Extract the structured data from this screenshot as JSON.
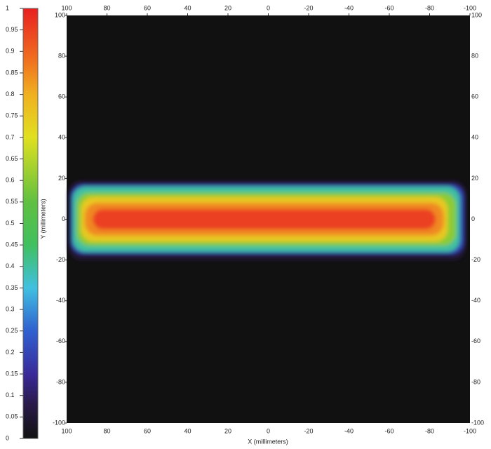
{
  "chart_data": {
    "type": "heatmap",
    "xlabel": "X (millimeters)",
    "ylabel": "Y (millimeters)",
    "xlim": [
      100,
      -100
    ],
    "xticks": [
      100,
      80,
      60,
      40,
      20,
      0,
      -20,
      -40,
      -60,
      -80,
      -100
    ],
    "ylim": [
      -100,
      100
    ],
    "yticks": [
      100,
      80,
      60,
      40,
      20,
      0,
      -20,
      -40,
      -60,
      -80,
      -100
    ],
    "colorbar": {
      "lim": [
        0,
        1
      ],
      "ticks": [
        0,
        0.05,
        0.1,
        0.15,
        0.2,
        0.25,
        0.3,
        0.35,
        0.4,
        0.45,
        0.5,
        0.55,
        0.6,
        0.65,
        0.7,
        0.75,
        0.8,
        0.85,
        0.9,
        0.95,
        1
      ]
    },
    "colormap": [
      [
        0,
        "#111111"
      ],
      [
        0.08,
        "#2a1a4a"
      ],
      [
        0.15,
        "#3a2a9a"
      ],
      [
        0.25,
        "#3060d0"
      ],
      [
        0.35,
        "#40c0e0"
      ],
      [
        0.45,
        "#40c060"
      ],
      [
        0.55,
        "#60c040"
      ],
      [
        0.7,
        "#e0e020"
      ],
      [
        0.8,
        "#f0b020"
      ],
      [
        0.88,
        "#f07020"
      ],
      [
        1,
        "#e82020"
      ]
    ],
    "contours": [
      {
        "level": 0.05,
        "x": [
          99,
          -98
        ],
        "y": [
          -20,
          19
        ]
      },
      {
        "level": 0.2,
        "x": [
          98,
          -97
        ],
        "y": [
          -17,
          17
        ]
      },
      {
        "level": 0.4,
        "x": [
          97,
          -95
        ],
        "y": [
          -16,
          16
        ]
      },
      {
        "level": 0.6,
        "x": [
          95,
          -93
        ],
        "y": [
          -13,
          13
        ]
      },
      {
        "level": 0.75,
        "x": [
          93,
          -89
        ],
        "y": [
          -11,
          11
        ]
      },
      {
        "level": 0.85,
        "x": [
          91,
          -87
        ],
        "y": [
          -8,
          8
        ]
      },
      {
        "level": 0.95,
        "x": [
          87,
          -83
        ],
        "y": [
          -5,
          5
        ]
      }
    ]
  }
}
